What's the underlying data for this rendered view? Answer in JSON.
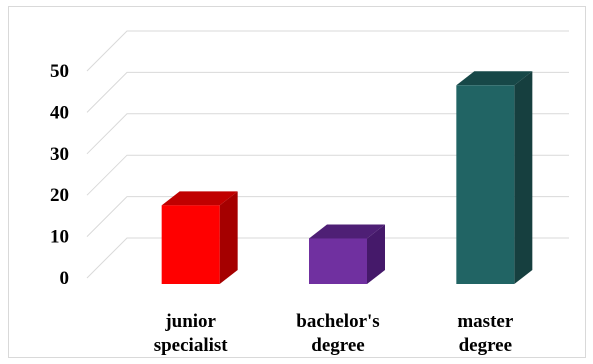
{
  "chart_data": {
    "type": "bar",
    "title": "",
    "xlabel": "",
    "ylabel": "",
    "categories": [
      "junior\nspecialist",
      "bachelor's\ndegree",
      "master\ndegree"
    ],
    "values": [
      19,
      11,
      48
    ],
    "bar_colors": [
      {
        "front": "#ff0000",
        "top": "#c00000",
        "side": "#a50000"
      },
      {
        "front": "#7030a0",
        "top": "#4e1f75",
        "side": "#45196a"
      },
      {
        "front": "#216464",
        "top": "#174848",
        "side": "#163f3f"
      }
    ],
    "ylim": [
      0,
      50
    ],
    "yticks": [
      0,
      10,
      20,
      30,
      40,
      50
    ],
    "grid": true,
    "legend": "none"
  }
}
